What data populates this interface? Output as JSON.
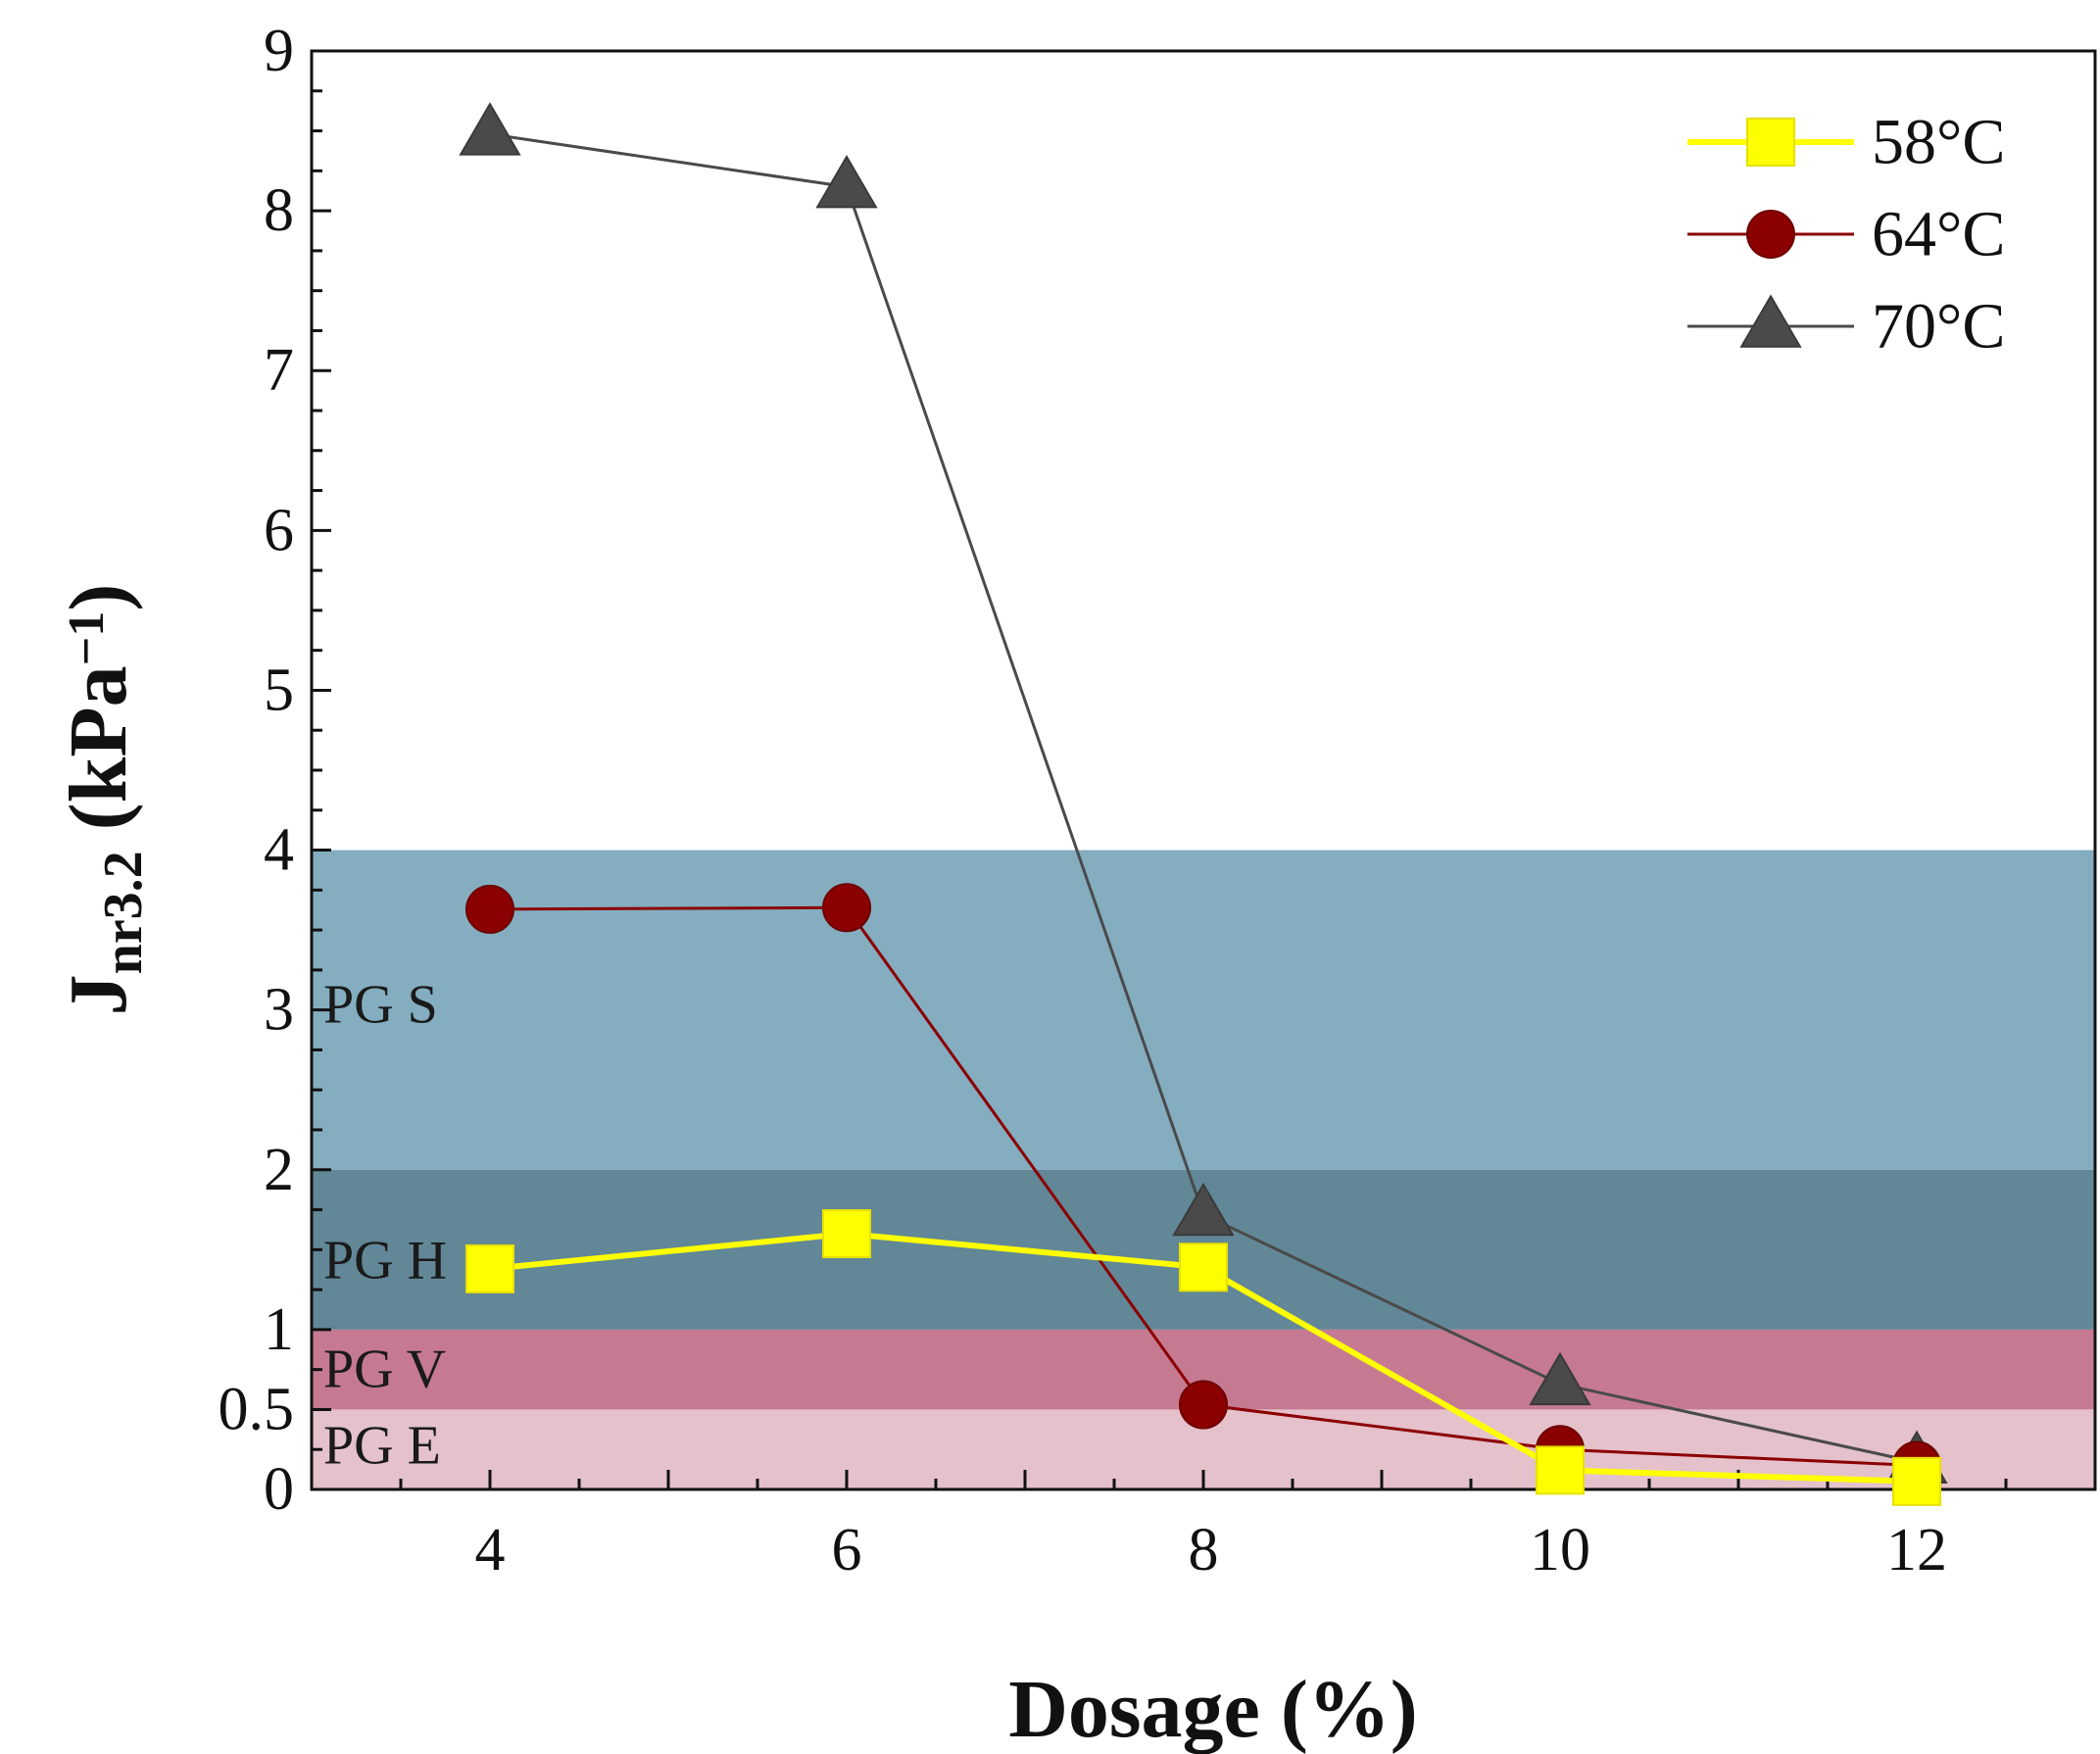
{
  "chart_data": {
    "type": "line",
    "title": "",
    "xlabel": "Dosage (%)",
    "ylabel": {
      "main": "J",
      "subscript": "nr3.2",
      "unit_prefix": " (kPa",
      "superscript": "−1",
      "unit_suffix": ")"
    },
    "xlim": [
      3,
      13
    ],
    "ylim": [
      0,
      9
    ],
    "x_ticks": [
      4,
      6,
      8,
      10,
      12
    ],
    "y_ticks": [
      0,
      0.5,
      1,
      2,
      3,
      4,
      5,
      6,
      7,
      8,
      9
    ],
    "y_tick_labels": [
      "0",
      "0.5",
      "1",
      "2",
      "3",
      "4",
      "5",
      "6",
      "7",
      "8",
      "9"
    ],
    "x": [
      4,
      6,
      8,
      10,
      12
    ],
    "series": [
      {
        "name": "58°C",
        "marker": "square",
        "color": "#ffff00",
        "values": [
          1.38,
          1.6,
          1.39,
          0.12,
          0.05
        ]
      },
      {
        "name": "64°C",
        "marker": "circle",
        "color": "#8b0000",
        "values": [
          3.63,
          3.64,
          0.53,
          0.25,
          0.15
        ]
      },
      {
        "name": "70°C",
        "marker": "triangle",
        "color": "#4a4a4a",
        "values": [
          8.48,
          8.15,
          1.72,
          0.66,
          0.17
        ]
      }
    ],
    "bands": [
      {
        "label": "PG S",
        "from": 2,
        "to": 4,
        "color": "#84adc0"
      },
      {
        "label": "PG H",
        "from": 1,
        "to": 2,
        "color": "#628797"
      },
      {
        "label": "PG V",
        "from": 0.5,
        "to": 1,
        "color": "#c67a91"
      },
      {
        "label": "PG E",
        "from": 0,
        "to": 0.5,
        "color": "#e4c1cb"
      }
    ],
    "band_label_y": {
      "PG S": 3.0,
      "PG H": 1.4,
      "PG V": 0.72,
      "PG E": 0.24
    },
    "legend_position": "top-right",
    "grid": false
  }
}
